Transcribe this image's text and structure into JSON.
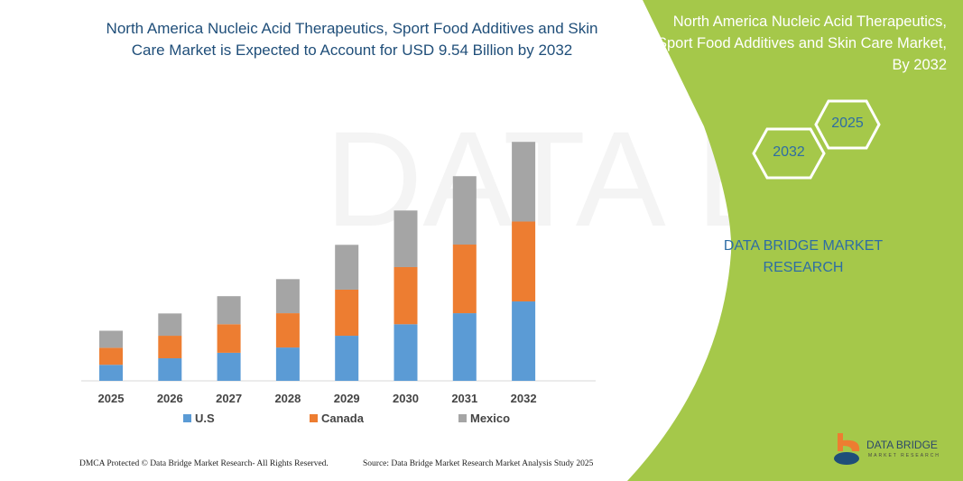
{
  "title": "North America Nucleic Acid Therapeutics, Sport Food Additives and Skin Care Market is Expected to Account for USD 9.54 Billion by 2032",
  "side_panel": {
    "title": "North America Nucleic Acid Therapeutics, Sport Food Additives and Skin Care Market, By 2032",
    "hex_years": [
      "2032",
      "2025"
    ],
    "brand": "DATA BRIDGE MARKET RESEARCH",
    "logo_text": "DATA BRIDGE",
    "logo_sub": "MARKET RESEARCH",
    "color": "#a5c84a"
  },
  "footer": {
    "left": "DMCA Protected © Data Bridge Market Research- All Rights Reserved.",
    "right": "Source: Data Bridge Market Research Market Analysis Study 2025"
  },
  "chart_data": {
    "type": "bar",
    "stacked": true,
    "categories": [
      "2025",
      "2026",
      "2027",
      "2028",
      "2029",
      "2030",
      "2031",
      "2032"
    ],
    "series": [
      {
        "name": "U.S",
        "color": "#5b9bd5",
        "values": [
          0.64,
          0.9,
          1.12,
          1.33,
          1.8,
          2.26,
          2.7,
          3.17
        ]
      },
      {
        "name": "Canada",
        "color": "#ed7d31",
        "values": [
          0.68,
          0.9,
          1.14,
          1.37,
          1.84,
          2.28,
          2.74,
          3.19
        ]
      },
      {
        "name": "Mexico",
        "color": "#a5a5a5",
        "values": [
          0.68,
          0.89,
          1.12,
          1.36,
          1.79,
          2.26,
          2.73,
          3.18
        ]
      }
    ],
    "ylim": [
      0,
      9.8
    ],
    "grid": false,
    "legend": "bottom"
  }
}
